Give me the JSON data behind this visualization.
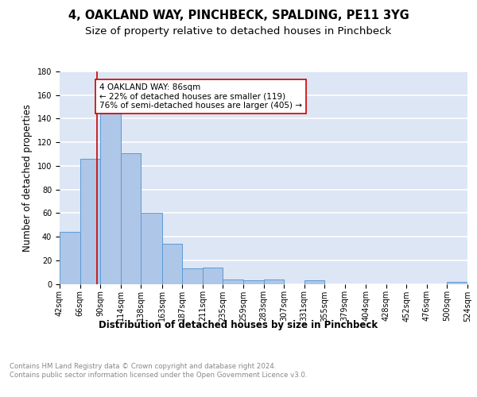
{
  "title": "4, OAKLAND WAY, PINCHBECK, SPALDING, PE11 3YG",
  "subtitle": "Size of property relative to detached houses in Pinchbeck",
  "xlabel_bottom": "Distribution of detached houses by size in Pinchbeck",
  "ylabel": "Number of detached properties",
  "bin_edges": [
    42,
    66,
    90,
    114,
    138,
    163,
    187,
    211,
    235,
    259,
    283,
    307,
    331,
    355,
    379,
    404,
    428,
    452,
    476,
    500,
    524
  ],
  "bar_heights": [
    44,
    106,
    144,
    111,
    60,
    34,
    13,
    14,
    4,
    3,
    4,
    0,
    3,
    0,
    0,
    0,
    0,
    0,
    0,
    2
  ],
  "bar_color": "#aec6e8",
  "bar_edge_color": "#5b9bd5",
  "background_color": "#dce6f5",
  "grid_color": "#ffffff",
  "property_value": 86,
  "red_line_color": "#cc0000",
  "annotation_text": "4 OAKLAND WAY: 86sqm\n← 22% of detached houses are smaller (119)\n76% of semi-detached houses are larger (405) →",
  "annotation_box_color": "#ffffff",
  "annotation_box_edge": "#cc0000",
  "ylim": [
    0,
    180
  ],
  "yticks": [
    0,
    20,
    40,
    60,
    80,
    100,
    120,
    140,
    160,
    180
  ],
  "tick_labels": [
    "42sqm",
    "66sqm",
    "90sqm",
    "114sqm",
    "138sqm",
    "163sqm",
    "187sqm",
    "211sqm",
    "235sqm",
    "259sqm",
    "283sqm",
    "307sqm",
    "331sqm",
    "355sqm",
    "379sqm",
    "404sqm",
    "428sqm",
    "452sqm",
    "476sqm",
    "500sqm",
    "524sqm"
  ],
  "footer_text": "Contains HM Land Registry data © Crown copyright and database right 2024.\nContains public sector information licensed under the Open Government Licence v3.0.",
  "footer_color": "#888888",
  "title_fontsize": 10.5,
  "subtitle_fontsize": 9.5,
  "ylabel_fontsize": 8.5,
  "tick_fontsize": 7,
  "annotation_fontsize": 7.5,
  "xlabel_bottom_fontsize": 8.5,
  "footer_fontsize": 6.2
}
